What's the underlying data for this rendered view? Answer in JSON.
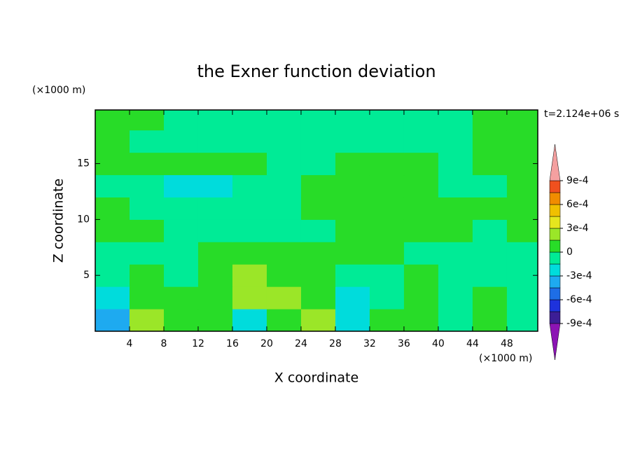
{
  "chart_data": {
    "type": "contour",
    "title": "the Exner function deviation",
    "xlabel": "X coordinate",
    "ylabel": "Z coordinate",
    "xunit": "(×1000 m)",
    "yunit": "(×1000 m)",
    "time_label": "t=2.124e+06 s",
    "xlim": [
      0,
      51.6
    ],
    "ylim": [
      0,
      19.8
    ],
    "xticks": [
      4,
      8,
      12,
      16,
      20,
      24,
      28,
      32,
      36,
      40,
      44,
      48
    ],
    "yticks": [
      5,
      10,
      15
    ],
    "x": [
      2,
      6,
      10,
      14,
      18,
      22,
      26,
      30,
      34,
      38,
      42,
      46,
      50
    ],
    "z": [
      1,
      3,
      5,
      7,
      9,
      11,
      13,
      15,
      17,
      19
    ],
    "values": [
      [
        -0.0004,
        0.0002,
        5e-05,
        0.0001,
        -0.0002,
        0.0001,
        0.0002,
        -0.0002,
        5e-05,
        0.0001,
        -0.0001,
        0.0001,
        -0.0001
      ],
      [
        -0.0002,
        0.0001,
        5e-05,
        5e-05,
        0.0002,
        0.0002,
        5e-05,
        -0.0002,
        -0.0001,
        5e-05,
        -0.0001,
        5e-05,
        -0.0001
      ],
      [
        -0.0001,
        5e-05,
        -0.0001,
        5e-05,
        0.0002,
        0.0001,
        5e-05,
        -0.0001,
        -0.0001,
        5e-05,
        -0.0001,
        -0.0001,
        -0.0001
      ],
      [
        -0.0001,
        -0.0001,
        -0.0001,
        5e-05,
        0.0001,
        5e-05,
        5e-05,
        5e-05,
        5e-05,
        -0.0001,
        -0.0001,
        -0.0001,
        -0.0001
      ],
      [
        5e-05,
        5e-05,
        -0.0001,
        -0.0001,
        -0.0001,
        -0.0001,
        -0.0001,
        5e-05,
        5e-05,
        5e-05,
        5e-05,
        -0.0001,
        5e-05
      ],
      [
        5e-05,
        -0.0001,
        -0.0001,
        -0.0001,
        -0.0001,
        -0.0001,
        5e-05,
        5e-05,
        5e-05,
        5e-05,
        5e-05,
        5e-05,
        5e-05
      ],
      [
        -0.0001,
        -0.0001,
        -0.0002,
        -0.0002,
        -0.0001,
        -0.0001,
        5e-05,
        5e-05,
        5e-05,
        5e-05,
        -0.0001,
        -0.0001,
        5e-05
      ],
      [
        5e-05,
        5e-05,
        5e-05,
        5e-05,
        5e-05,
        -0.0001,
        -0.0001,
        5e-05,
        5e-05,
        5e-05,
        -0.0001,
        5e-05,
        5e-05
      ],
      [
        5e-05,
        -0.0001,
        -0.0001,
        -0.0001,
        -0.0001,
        -0.0001,
        -0.0001,
        -0.0001,
        -0.0001,
        -0.0001,
        -0.0001,
        5e-05,
        5e-05
      ],
      [
        5e-05,
        5e-05,
        -0.0001,
        -0.0001,
        -0.0001,
        -0.0001,
        -0.0001,
        -0.0001,
        -0.0001,
        -0.0001,
        -0.0001,
        5e-05,
        5e-05
      ]
    ],
    "levels": [
      -0.0009,
      -0.00075,
      -0.0006,
      -0.00045,
      -0.0003,
      -0.00015,
      0,
      0.00015,
      0.0003,
      0.00045,
      0.0006,
      0.00075,
      0.0009
    ],
    "colors": [
      "#8c14b4",
      "#3c1e96",
      "#1e32dc",
      "#1e6ee6",
      "#1eaaf0",
      "#00dcdc",
      "#00eb96",
      "#28dc28",
      "#9be628",
      "#e6e61e",
      "#f0c000",
      "#f08c00",
      "#f0501e",
      "#f4a0a0"
    ],
    "colorbar_ticks": [
      {
        "value": 0.0009,
        "label": "9e-4"
      },
      {
        "value": 0.0006,
        "label": "6e-4"
      },
      {
        "value": 0.0003,
        "label": "3e-4"
      },
      0,
      {
        "value": -0.0003,
        "label": "-3e-4"
      },
      {
        "value": -0.0006,
        "label": "-6e-4"
      },
      {
        "value": -0.0009,
        "label": "-9e-4"
      }
    ]
  }
}
